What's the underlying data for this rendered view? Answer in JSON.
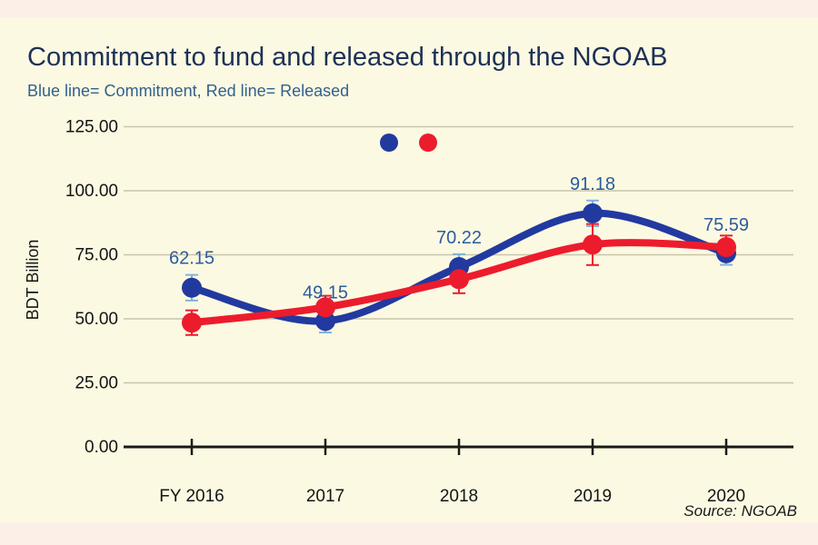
{
  "chart_data": {
    "type": "line",
    "title": "Commitment to fund and released through the NGOAB",
    "subtitle": "Blue line= Commitment, Red line= Released",
    "ylabel": "BDT Billion",
    "xlabel": "",
    "source": "Source: NGOAB",
    "categories": [
      "FY 2016",
      "2017",
      "2018",
      "2019",
      "2020"
    ],
    "ylim": [
      0,
      125
    ],
    "ytick_step": 25,
    "ytick_labels": [
      "0.00",
      "25.00",
      "50.00",
      "75.00",
      "100.00",
      "125.00"
    ],
    "grid": true,
    "legend_position": "top-center",
    "legend_style": "dots-only",
    "series": [
      {
        "name": "Commitment",
        "color": "#2239a0",
        "error_color": "#7fb4da",
        "values": [
          62.15,
          49.15,
          70.22,
          91.18,
          75.59
        ],
        "point_labels": [
          "62.15",
          "49.15",
          "70.22",
          "91.18",
          "75.59"
        ],
        "errors": [
          5,
          4.5,
          5,
          5,
          4.5
        ]
      },
      {
        "name": "Released",
        "color": "#ec1c2d",
        "error_color": "#ec1c2d",
        "values": [
          48.5,
          54.5,
          65.5,
          79,
          78
        ],
        "point_labels": [],
        "errors": [
          4.8,
          4.5,
          5.5,
          8,
          4.5
        ]
      }
    ],
    "colors": {
      "background": "#fcf9e2",
      "page_margin": "#fcefe8",
      "gridline": "#c9c6ab",
      "axis": "#1a1a1a",
      "title": "#1d3156",
      "subtitle": "#31618e",
      "point_label": "#2d5c9f",
      "tick_label": "#141414"
    }
  }
}
